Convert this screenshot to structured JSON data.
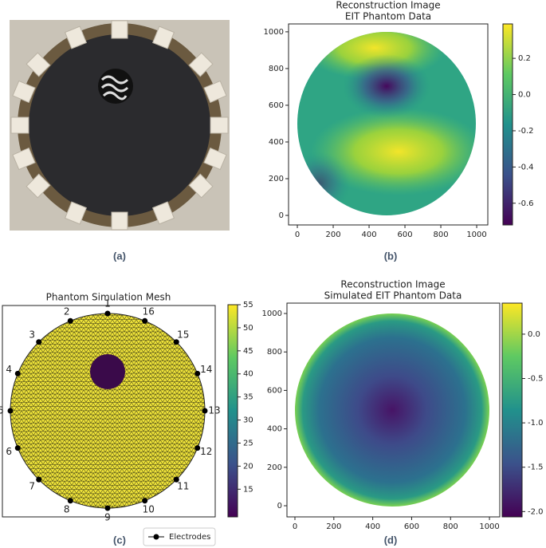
{
  "panels": [
    {
      "label": "(a)"
    },
    {
      "label": "(b)",
      "title": "Reconstruction Image",
      "subtitle": "EIT Phantom Data",
      "xlim": [
        -49,
        1062
      ],
      "ylim": [
        -52,
        1043
      ],
      "xticks": [
        0,
        200,
        400,
        600,
        800,
        1000
      ],
      "yticks": [
        0,
        200,
        400,
        600,
        800,
        1000
      ],
      "clim": [
        -0.72,
        0.39
      ],
      "cticks": [
        {
          "value": -0.6,
          "label": "-0.6"
        },
        {
          "value": -0.4,
          "label": "-0.4"
        },
        {
          "value": -0.2,
          "label": "-0.2"
        },
        {
          "value": 0,
          "label": "0.0"
        },
        {
          "value": 0.2,
          "label": "0.2"
        }
      ]
    },
    {
      "label": "(c)",
      "title": "Phantom Simulation Mesh",
      "electrodes": [
        "1",
        "2",
        "3",
        "4",
        "5",
        "6",
        "7",
        "8",
        "9",
        "10",
        "11",
        "12",
        "13",
        "14",
        "15",
        "16"
      ],
      "legend": "Electrodes",
      "clim": [
        9,
        55
      ],
      "cticks": [
        15,
        20,
        25,
        30,
        35,
        40,
        45,
        50,
        55
      ]
    },
    {
      "label": "(d)",
      "title": "Reconstruction Image",
      "subtitle": "Simulated EIT Phantom Data",
      "xlim": [
        -41,
        1053
      ],
      "ylim": [
        -58,
        1054
      ],
      "xticks": [
        0,
        200,
        400,
        600,
        800,
        1000
      ],
      "yticks": [
        0,
        200,
        400,
        600,
        800,
        1000
      ],
      "clim": [
        -2.06,
        0.35
      ],
      "cticks": [
        {
          "value": -2,
          "label": "-2.0"
        },
        {
          "value": -1.5,
          "label": "-1.5"
        },
        {
          "value": -1,
          "label": "-1.0"
        },
        {
          "value": -0.5,
          "label": "-0.5"
        },
        {
          "value": 0,
          "label": "0.0"
        }
      ]
    }
  ]
}
